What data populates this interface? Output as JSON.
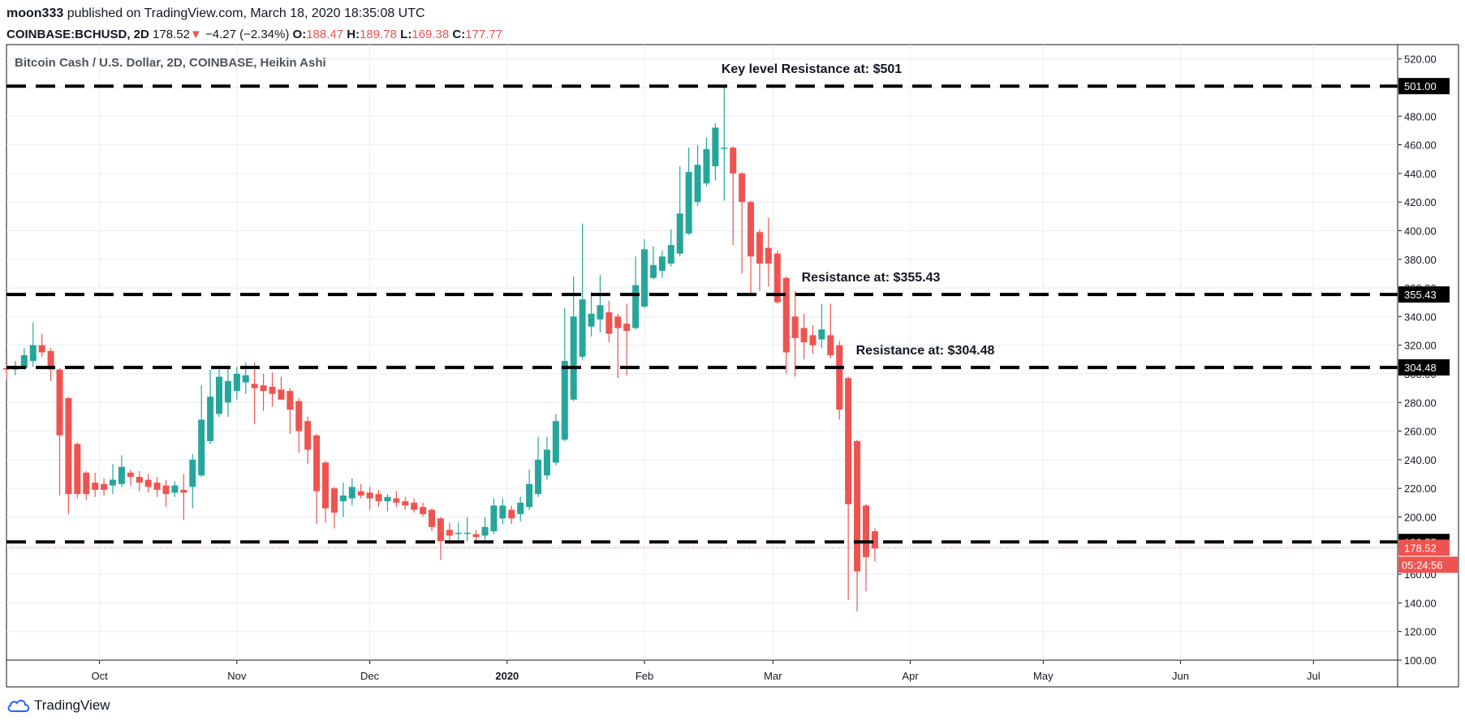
{
  "header": {
    "author": "moon333",
    "published_text": "published on TradingView.com, March 18, 2020 18:35:08 UTC",
    "symbol": "COINBASE:BCHUSD, 2D",
    "last": "178.52",
    "arrow": "▼",
    "change": "−4.27 (−2.34%)",
    "o_label": "O:",
    "o_value": "188.47",
    "h_label": "H:",
    "h_value": "189.78",
    "l_label": "L:",
    "l_value": "169.38",
    "c_label": "C:",
    "c_value": "177.77"
  },
  "chart_title": "Bitcoin Cash / U.S. Dollar, 2D, COINBASE, Heikin Ashi",
  "footer": {
    "brand": "TradingView"
  },
  "colors": {
    "up": "#26a69a",
    "down": "#ef5350",
    "grid": "#e8edf2",
    "level": "#000000"
  },
  "chart_data": {
    "type": "candlestick",
    "style": "Heikin Ashi",
    "ylim": [
      100,
      530
    ],
    "y_ticks": [
      "520.00",
      "500.00",
      "480.00",
      "460.00",
      "440.00",
      "420.00",
      "400.00",
      "380.00",
      "360.00",
      "340.00",
      "320.00",
      "300.00",
      "280.00",
      "260.00",
      "240.00",
      "220.00",
      "200.00",
      "180.00",
      "160.00",
      "140.00",
      "120.00",
      "100.00"
    ],
    "x_ticks": [
      "Oct",
      "Nov",
      "Dec",
      "2020",
      "Feb",
      "Mar",
      "Apr",
      "May",
      "Jun",
      "Jul"
    ],
    "x_tick_dates": [
      "2019-10-01",
      "2019-11-01",
      "2019-12-01",
      "2020-01-01",
      "2020-02-01",
      "2020-03-01",
      "2020-04-01",
      "2020-05-01",
      "2020-06-01",
      "2020-07-01"
    ],
    "x_range": [
      "2019-09-10",
      "2020-07-20"
    ],
    "levels": [
      {
        "price": 501.0,
        "label": "501.00",
        "annotation": "Key level Resistance at: $501"
      },
      {
        "price": 355.43,
        "label": "355.43",
        "annotation": "Resistance at: $355.43"
      },
      {
        "price": 304.48,
        "label": "304.48",
        "annotation": "Resistance at: $304.48"
      },
      {
        "price": 182.55,
        "label": "182.55",
        "annotation": ""
      }
    ],
    "last_price": {
      "price": 178.52,
      "label": "178.52",
      "countdown": "05:24:56"
    },
    "candles": [
      {
        "d": "2019-09-10",
        "o": 304,
        "h": 306,
        "l": 296,
        "c": 303
      },
      {
        "d": "2019-09-12",
        "o": 303,
        "h": 309,
        "l": 299,
        "c": 305
      },
      {
        "d": "2019-09-14",
        "o": 304,
        "h": 318,
        "l": 303,
        "c": 313
      },
      {
        "d": "2019-09-16",
        "o": 309,
        "h": 336,
        "l": 305,
        "c": 320
      },
      {
        "d": "2019-09-18",
        "o": 320,
        "h": 328,
        "l": 312,
        "c": 315
      },
      {
        "d": "2019-09-20",
        "o": 316,
        "h": 318,
        "l": 295,
        "c": 303
      },
      {
        "d": "2019-09-22",
        "o": 303,
        "h": 304,
        "l": 215,
        "c": 257
      },
      {
        "d": "2019-09-24",
        "o": 283,
        "h": 284,
        "l": 202,
        "c": 216
      },
      {
        "d": "2019-09-26",
        "o": 251,
        "h": 252,
        "l": 213,
        "c": 216
      },
      {
        "d": "2019-09-28",
        "o": 231,
        "h": 232,
        "l": 212,
        "c": 216
      },
      {
        "d": "2019-09-30",
        "o": 224,
        "h": 231,
        "l": 214,
        "c": 219
      },
      {
        "d": "2019-10-02",
        "o": 223,
        "h": 227,
        "l": 215,
        "c": 219
      },
      {
        "d": "2019-10-04",
        "o": 222,
        "h": 237,
        "l": 216,
        "c": 226
      },
      {
        "d": "2019-10-06",
        "o": 223,
        "h": 243,
        "l": 221,
        "c": 235
      },
      {
        "d": "2019-10-08",
        "o": 231,
        "h": 233,
        "l": 222,
        "c": 228
      },
      {
        "d": "2019-10-10",
        "o": 228,
        "h": 232,
        "l": 218,
        "c": 224
      },
      {
        "d": "2019-10-12",
        "o": 226,
        "h": 230,
        "l": 217,
        "c": 221
      },
      {
        "d": "2019-10-14",
        "o": 224,
        "h": 228,
        "l": 214,
        "c": 219
      },
      {
        "d": "2019-10-16",
        "o": 222,
        "h": 226,
        "l": 207,
        "c": 216
      },
      {
        "d": "2019-10-18",
        "o": 217,
        "h": 225,
        "l": 214,
        "c": 222
      },
      {
        "d": "2019-10-20",
        "o": 219,
        "h": 230,
        "l": 198,
        "c": 217
      },
      {
        "d": "2019-10-22",
        "o": 221,
        "h": 244,
        "l": 206,
        "c": 240
      },
      {
        "d": "2019-10-24",
        "o": 229,
        "h": 292,
        "l": 228,
        "c": 268
      },
      {
        "d": "2019-10-26",
        "o": 253,
        "h": 303,
        "l": 251,
        "c": 284
      },
      {
        "d": "2019-10-28",
        "o": 272,
        "h": 306,
        "l": 270,
        "c": 298
      },
      {
        "d": "2019-10-30",
        "o": 280,
        "h": 306,
        "l": 270,
        "c": 295
      },
      {
        "d": "2019-11-01",
        "o": 288,
        "h": 305,
        "l": 282,
        "c": 300
      },
      {
        "d": "2019-11-03",
        "o": 294,
        "h": 308,
        "l": 286,
        "c": 299
      },
      {
        "d": "2019-11-05",
        "o": 293,
        "h": 308,
        "l": 265,
        "c": 290
      },
      {
        "d": "2019-11-07",
        "o": 292,
        "h": 300,
        "l": 274,
        "c": 288
      },
      {
        "d": "2019-11-09",
        "o": 291,
        "h": 301,
        "l": 277,
        "c": 286
      },
      {
        "d": "2019-11-11",
        "o": 289,
        "h": 298,
        "l": 282,
        "c": 282
      },
      {
        "d": "2019-11-13",
        "o": 288,
        "h": 290,
        "l": 258,
        "c": 275
      },
      {
        "d": "2019-11-15",
        "o": 281,
        "h": 283,
        "l": 245,
        "c": 260
      },
      {
        "d": "2019-11-17",
        "o": 267,
        "h": 270,
        "l": 237,
        "c": 247
      },
      {
        "d": "2019-11-19",
        "o": 257,
        "h": 258,
        "l": 195,
        "c": 218
      },
      {
        "d": "2019-11-21",
        "o": 238,
        "h": 239,
        "l": 196,
        "c": 206
      },
      {
        "d": "2019-11-23",
        "o": 220,
        "h": 221,
        "l": 192,
        "c": 203
      },
      {
        "d": "2019-11-25",
        "o": 211,
        "h": 224,
        "l": 200,
        "c": 215
      },
      {
        "d": "2019-11-27",
        "o": 213,
        "h": 227,
        "l": 208,
        "c": 221
      },
      {
        "d": "2019-11-29",
        "o": 218,
        "h": 223,
        "l": 213,
        "c": 215
      },
      {
        "d": "2019-12-01",
        "o": 217,
        "h": 221,
        "l": 205,
        "c": 213
      },
      {
        "d": "2019-12-03",
        "o": 216,
        "h": 219,
        "l": 207,
        "c": 211
      },
      {
        "d": "2019-12-05",
        "o": 211,
        "h": 216,
        "l": 204,
        "c": 214
      },
      {
        "d": "2019-12-07",
        "o": 213,
        "h": 218,
        "l": 207,
        "c": 210
      },
      {
        "d": "2019-12-09",
        "o": 211,
        "h": 214,
        "l": 205,
        "c": 208
      },
      {
        "d": "2019-12-11",
        "o": 210,
        "h": 213,
        "l": 203,
        "c": 205
      },
      {
        "d": "2019-12-13",
        "o": 207,
        "h": 210,
        "l": 200,
        "c": 202
      },
      {
        "d": "2019-12-15",
        "o": 205,
        "h": 206,
        "l": 190,
        "c": 193
      },
      {
        "d": "2019-12-17",
        "o": 199,
        "h": 200,
        "l": 170,
        "c": 183
      },
      {
        "d": "2019-12-19",
        "o": 191,
        "h": 196,
        "l": 181,
        "c": 187
      },
      {
        "d": "2019-12-21",
        "o": 189,
        "h": 196,
        "l": 184,
        "c": 189
      },
      {
        "d": "2019-12-23",
        "o": 189,
        "h": 200,
        "l": 183,
        "c": 189
      },
      {
        "d": "2019-12-25",
        "o": 188,
        "h": 191,
        "l": 181,
        "c": 186
      },
      {
        "d": "2019-12-27",
        "o": 187,
        "h": 200,
        "l": 184,
        "c": 193
      },
      {
        "d": "2019-12-29",
        "o": 190,
        "h": 213,
        "l": 188,
        "c": 208
      },
      {
        "d": "2019-12-31",
        "o": 199,
        "h": 213,
        "l": 195,
        "c": 208
      },
      {
        "d": "2020-01-02",
        "o": 205,
        "h": 208,
        "l": 195,
        "c": 199
      },
      {
        "d": "2020-01-04",
        "o": 202,
        "h": 214,
        "l": 197,
        "c": 210
      },
      {
        "d": "2020-01-06",
        "o": 207,
        "h": 233,
        "l": 205,
        "c": 223
      },
      {
        "d": "2020-01-08",
        "o": 216,
        "h": 256,
        "l": 214,
        "c": 240
      },
      {
        "d": "2020-01-10",
        "o": 229,
        "h": 256,
        "l": 226,
        "c": 247
      },
      {
        "d": "2020-01-12",
        "o": 238,
        "h": 272,
        "l": 236,
        "c": 267
      },
      {
        "d": "2020-01-14",
        "o": 254,
        "h": 346,
        "l": 253,
        "c": 309
      },
      {
        "d": "2020-01-16",
        "o": 282,
        "h": 368,
        "l": 281,
        "c": 340
      },
      {
        "d": "2020-01-18",
        "o": 312,
        "h": 405,
        "l": 310,
        "c": 352
      },
      {
        "d": "2020-01-20",
        "o": 333,
        "h": 357,
        "l": 326,
        "c": 342
      },
      {
        "d": "2020-01-22",
        "o": 338,
        "h": 369,
        "l": 329,
        "c": 348
      },
      {
        "d": "2020-01-24",
        "o": 343,
        "h": 351,
        "l": 322,
        "c": 328
      },
      {
        "d": "2020-01-26",
        "o": 340,
        "h": 342,
        "l": 297,
        "c": 332
      },
      {
        "d": "2020-01-28",
        "o": 335,
        "h": 349,
        "l": 299,
        "c": 330
      },
      {
        "d": "2020-01-30",
        "o": 332,
        "h": 382,
        "l": 331,
        "c": 362
      },
      {
        "d": "2020-02-01",
        "o": 347,
        "h": 394,
        "l": 346,
        "c": 387
      },
      {
        "d": "2020-02-03",
        "o": 367,
        "h": 389,
        "l": 366,
        "c": 376
      },
      {
        "d": "2020-02-05",
        "o": 372,
        "h": 386,
        "l": 367,
        "c": 382
      },
      {
        "d": "2020-02-07",
        "o": 377,
        "h": 401,
        "l": 375,
        "c": 390
      },
      {
        "d": "2020-02-09",
        "o": 384,
        "h": 445,
        "l": 382,
        "c": 412
      },
      {
        "d": "2020-02-11",
        "o": 398,
        "h": 458,
        "l": 397,
        "c": 441
      },
      {
        "d": "2020-02-13",
        "o": 420,
        "h": 460,
        "l": 417,
        "c": 446
      },
      {
        "d": "2020-02-15",
        "o": 433,
        "h": 465,
        "l": 431,
        "c": 457
      },
      {
        "d": "2020-02-17",
        "o": 445,
        "h": 475,
        "l": 435,
        "c": 472
      },
      {
        "d": "2020-02-19",
        "o": 458,
        "h": 500,
        "l": 421,
        "c": 458
      },
      {
        "d": "2020-02-21",
        "o": 458,
        "h": 459,
        "l": 390,
        "c": 440
      },
      {
        "d": "2020-02-23",
        "o": 440,
        "h": 441,
        "l": 370,
        "c": 420
      },
      {
        "d": "2020-02-25",
        "o": 420,
        "h": 421,
        "l": 355,
        "c": 382
      },
      {
        "d": "2020-02-27",
        "o": 399,
        "h": 401,
        "l": 358,
        "c": 377
      },
      {
        "d": "2020-02-29",
        "o": 388,
        "h": 409,
        "l": 361,
        "c": 377
      },
      {
        "d": "2020-03-02",
        "o": 384,
        "h": 386,
        "l": 349,
        "c": 350
      },
      {
        "d": "2020-03-04",
        "o": 367,
        "h": 368,
        "l": 300,
        "c": 315
      },
      {
        "d": "2020-03-06",
        "o": 340,
        "h": 358,
        "l": 298,
        "c": 325
      },
      {
        "d": "2020-03-08",
        "o": 332,
        "h": 342,
        "l": 310,
        "c": 322
      },
      {
        "d": "2020-03-10",
        "o": 327,
        "h": 334,
        "l": 314,
        "c": 320
      },
      {
        "d": "2020-03-12",
        "o": 324,
        "h": 349,
        "l": 318,
        "c": 331
      },
      {
        "d": "2020-03-14",
        "o": 327,
        "h": 349,
        "l": 311,
        "c": 313
      },
      {
        "d": "2020-03-16",
        "o": 320,
        "h": 323,
        "l": 268,
        "c": 275
      },
      {
        "d": "2020-03-18",
        "o": 297,
        "h": 298,
        "l": 142,
        "c": 209
      },
      {
        "d": "2020-03-20",
        "o": 253,
        "h": 254,
        "l": 134,
        "c": 162
      },
      {
        "d": "2020-03-22",
        "o": 208,
        "h": 209,
        "l": 148,
        "c": 172
      },
      {
        "d": "2020-03-24",
        "o": 190,
        "h": 192,
        "l": 169,
        "c": 178
      }
    ]
  }
}
